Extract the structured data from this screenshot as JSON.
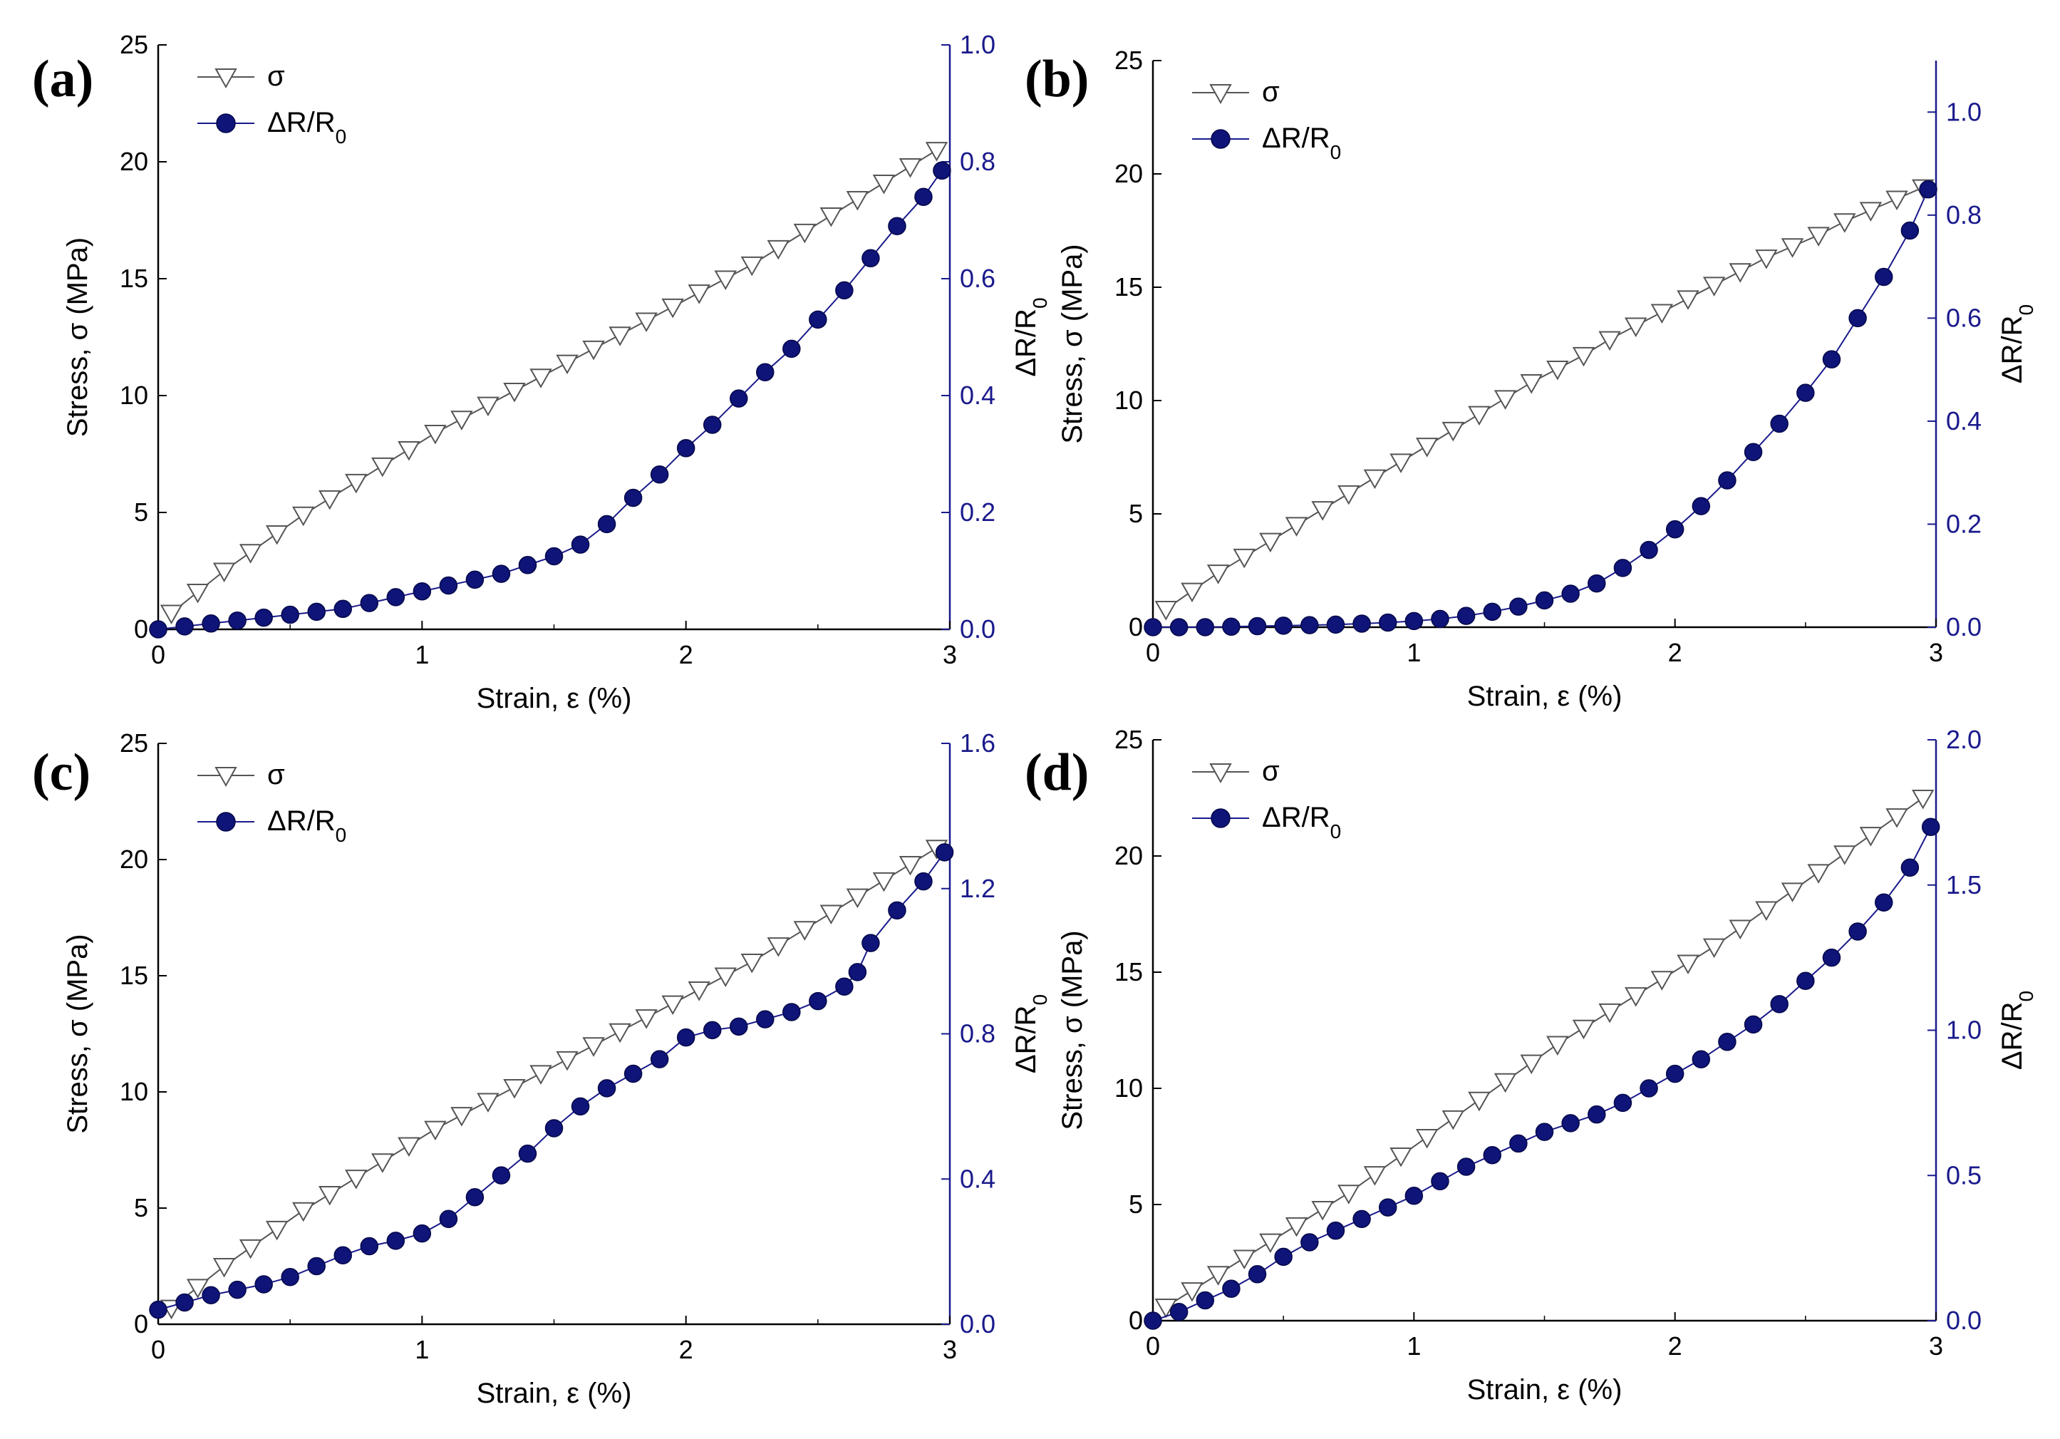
{
  "colors": {
    "stress": "#555555",
    "resistance": "#1a1a8c",
    "resistance_fill": "#0f1478",
    "axis": "#000000",
    "right_axis": "#1a1a8c"
  },
  "chart_data": [
    {
      "type": "line",
      "panel": "(a)",
      "xlabel": "Strain, ε (%)",
      "ylabel": "Stress, σ (MPa)",
      "y2label": "ΔR/R0",
      "xlim": [
        0,
        3
      ],
      "ylim": [
        0,
        25
      ],
      "y2lim": [
        0,
        1.0
      ],
      "xticks": [
        "0",
        "1",
        "2",
        "3"
      ],
      "yticks": [
        "0",
        "5",
        "10",
        "15",
        "20",
        "25"
      ],
      "y2ticks": [
        "0.0",
        "0.2",
        "0.4",
        "0.6",
        "0.8",
        "1.0"
      ],
      "legend": [
        "σ",
        "ΔR/R0"
      ],
      "legend_position": "top-left",
      "series": [
        {
          "name": "σ",
          "axis": "left",
          "x": [
            0.05,
            0.15,
            0.25,
            0.35,
            0.45,
            0.55,
            0.65,
            0.75,
            0.85,
            0.95,
            1.05,
            1.15,
            1.25,
            1.35,
            1.45,
            1.55,
            1.65,
            1.75,
            1.85,
            1.95,
            2.05,
            2.15,
            2.25,
            2.35,
            2.45,
            2.55,
            2.65,
            2.75,
            2.85,
            2.95
          ],
          "y": [
            0.7,
            1.6,
            2.5,
            3.3,
            4.1,
            4.9,
            5.6,
            6.3,
            7.0,
            7.7,
            8.4,
            9.0,
            9.6,
            10.2,
            10.8,
            11.4,
            12.0,
            12.6,
            13.2,
            13.8,
            14.4,
            15.0,
            15.6,
            16.3,
            17.0,
            17.7,
            18.4,
            19.1,
            19.8,
            20.5
          ]
        },
        {
          "name": "ΔR/R0",
          "axis": "right",
          "x": [
            0.0,
            0.1,
            0.2,
            0.3,
            0.4,
            0.5,
            0.6,
            0.7,
            0.8,
            0.9,
            1.0,
            1.1,
            1.2,
            1.3,
            1.4,
            1.5,
            1.6,
            1.7,
            1.8,
            1.9,
            2.0,
            2.1,
            2.2,
            2.3,
            2.4,
            2.5,
            2.6,
            2.7,
            2.8,
            2.9,
            2.97
          ],
          "y": [
            0.0,
            0.005,
            0.01,
            0.015,
            0.02,
            0.025,
            0.03,
            0.035,
            0.045,
            0.055,
            0.065,
            0.075,
            0.085,
            0.095,
            0.11,
            0.125,
            0.145,
            0.18,
            0.225,
            0.265,
            0.31,
            0.35,
            0.395,
            0.44,
            0.48,
            0.53,
            0.58,
            0.635,
            0.69,
            0.74,
            0.785
          ]
        }
      ]
    },
    {
      "type": "line",
      "panel": "(b)",
      "xlabel": "Strain, ε (%)",
      "ylabel": "Stress, σ (MPa)",
      "y2label": "ΔR/R0",
      "xlim": [
        0,
        3
      ],
      "ylim": [
        0,
        25
      ],
      "y2lim": [
        0,
        1.1
      ],
      "xticks": [
        "0",
        "1",
        "2",
        "3"
      ],
      "yticks": [
        "0",
        "5",
        "10",
        "15",
        "20",
        "25"
      ],
      "y2ticks": [
        "0.0",
        "0.2",
        "0.4",
        "0.6",
        "0.8",
        "1.0"
      ],
      "legend": [
        "σ",
        "ΔR/R0"
      ],
      "legend_position": "top-left",
      "series": [
        {
          "name": "σ",
          "axis": "left",
          "x": [
            0.05,
            0.15,
            0.25,
            0.35,
            0.45,
            0.55,
            0.65,
            0.75,
            0.85,
            0.95,
            1.05,
            1.15,
            1.25,
            1.35,
            1.45,
            1.55,
            1.65,
            1.75,
            1.85,
            1.95,
            2.05,
            2.15,
            2.25,
            2.35,
            2.45,
            2.55,
            2.65,
            2.75,
            2.85,
            2.95
          ],
          "y": [
            0.8,
            1.6,
            2.4,
            3.1,
            3.8,
            4.5,
            5.2,
            5.9,
            6.6,
            7.3,
            8.0,
            8.7,
            9.4,
            10.1,
            10.8,
            11.4,
            12.0,
            12.7,
            13.3,
            13.9,
            14.5,
            15.1,
            15.7,
            16.3,
            16.8,
            17.3,
            17.9,
            18.4,
            18.9,
            19.4
          ]
        },
        {
          "name": "ΔR/R0",
          "axis": "right",
          "x": [
            0.0,
            0.1,
            0.2,
            0.3,
            0.4,
            0.5,
            0.6,
            0.7,
            0.8,
            0.9,
            1.0,
            1.1,
            1.2,
            1.3,
            1.4,
            1.5,
            1.6,
            1.7,
            1.8,
            1.9,
            2.0,
            2.1,
            2.2,
            2.3,
            2.4,
            2.5,
            2.6,
            2.7,
            2.8,
            2.9,
            2.97
          ],
          "y": [
            0.0,
            0.0,
            0.0,
            0.001,
            0.002,
            0.003,
            0.004,
            0.005,
            0.007,
            0.009,
            0.012,
            0.016,
            0.022,
            0.03,
            0.04,
            0.052,
            0.065,
            0.085,
            0.115,
            0.15,
            0.19,
            0.235,
            0.285,
            0.34,
            0.395,
            0.455,
            0.52,
            0.6,
            0.68,
            0.77,
            0.85
          ]
        }
      ]
    },
    {
      "type": "line",
      "panel": "(c)",
      "xlabel": "Strain, ε (%)",
      "ylabel": "Stress, σ (MPa)",
      "y2label": "ΔR/R0",
      "xlim": [
        0,
        3
      ],
      "ylim": [
        0,
        25
      ],
      "y2lim": [
        0,
        1.6
      ],
      "xticks": [
        "0",
        "1",
        "2",
        "3"
      ],
      "yticks": [
        "0",
        "5",
        "10",
        "15",
        "20",
        "25"
      ],
      "y2ticks": [
        "0.0",
        "0.4",
        "0.8",
        "1.2",
        "1.6"
      ],
      "legend": [
        "σ",
        "ΔR/R0"
      ],
      "legend_position": "top-left",
      "series": [
        {
          "name": "σ",
          "axis": "left",
          "x": [
            0.05,
            0.15,
            0.25,
            0.35,
            0.45,
            0.55,
            0.65,
            0.75,
            0.85,
            0.95,
            1.05,
            1.15,
            1.25,
            1.35,
            1.45,
            1.55,
            1.65,
            1.75,
            1.85,
            1.95,
            2.05,
            2.15,
            2.25,
            2.35,
            2.45,
            2.55,
            2.65,
            2.75,
            2.85,
            2.95
          ],
          "y": [
            0.7,
            1.6,
            2.5,
            3.3,
            4.1,
            4.9,
            5.6,
            6.3,
            7.0,
            7.7,
            8.4,
            9.0,
            9.6,
            10.2,
            10.8,
            11.4,
            12.0,
            12.6,
            13.2,
            13.8,
            14.4,
            15.0,
            15.6,
            16.3,
            17.0,
            17.7,
            18.4,
            19.1,
            19.8,
            20.5
          ]
        },
        {
          "name": "ΔR/R0",
          "axis": "right",
          "x": [
            0.0,
            0.1,
            0.2,
            0.3,
            0.4,
            0.5,
            0.6,
            0.7,
            0.8,
            0.9,
            1.0,
            1.1,
            1.2,
            1.3,
            1.4,
            1.5,
            1.6,
            1.7,
            1.8,
            1.9,
            2.0,
            2.1,
            2.2,
            2.3,
            2.4,
            2.5,
            2.6,
            2.65,
            2.7,
            2.8,
            2.9,
            2.98
          ],
          "y": [
            0.04,
            0.06,
            0.08,
            0.095,
            0.11,
            0.13,
            0.16,
            0.19,
            0.215,
            0.23,
            0.25,
            0.29,
            0.35,
            0.41,
            0.47,
            0.54,
            0.6,
            0.65,
            0.69,
            0.73,
            0.79,
            0.81,
            0.82,
            0.84,
            0.86,
            0.89,
            0.93,
            0.97,
            1.05,
            1.14,
            1.22,
            1.3
          ]
        }
      ]
    },
    {
      "type": "line",
      "panel": "(d)",
      "xlabel": "Strain, ε (%)",
      "ylabel": "Stress, σ (MPa)",
      "y2label": "ΔR/R0",
      "xlim": [
        0,
        3
      ],
      "ylim": [
        0,
        25
      ],
      "y2lim": [
        0,
        2.0
      ],
      "xticks": [
        "0",
        "1",
        "2",
        "3"
      ],
      "yticks": [
        "0",
        "5",
        "10",
        "15",
        "20",
        "25"
      ],
      "y2ticks": [
        "0.0",
        "0.5",
        "1.0",
        "1.5",
        "2.0"
      ],
      "legend": [
        "σ",
        "ΔR/R0"
      ],
      "legend_position": "top-left",
      "series": [
        {
          "name": "σ",
          "axis": "left",
          "x": [
            0.05,
            0.15,
            0.25,
            0.35,
            0.45,
            0.55,
            0.65,
            0.75,
            0.85,
            0.95,
            1.05,
            1.15,
            1.25,
            1.35,
            1.45,
            1.55,
            1.65,
            1.75,
            1.85,
            1.95,
            2.05,
            2.15,
            2.25,
            2.35,
            2.45,
            2.55,
            2.65,
            2.75,
            2.85,
            2.95
          ],
          "y": [
            0.6,
            1.3,
            2.0,
            2.7,
            3.4,
            4.1,
            4.8,
            5.5,
            6.3,
            7.1,
            7.9,
            8.7,
            9.5,
            10.3,
            11.1,
            11.9,
            12.6,
            13.3,
            14.0,
            14.7,
            15.4,
            16.1,
            16.9,
            17.7,
            18.5,
            19.3,
            20.1,
            20.9,
            21.7,
            22.5
          ]
        },
        {
          "name": "ΔR/R0",
          "axis": "right",
          "x": [
            0.0,
            0.1,
            0.2,
            0.3,
            0.4,
            0.5,
            0.6,
            0.7,
            0.8,
            0.9,
            1.0,
            1.1,
            1.2,
            1.3,
            1.4,
            1.5,
            1.6,
            1.7,
            1.8,
            1.9,
            2.0,
            2.1,
            2.2,
            2.3,
            2.4,
            2.5,
            2.6,
            2.7,
            2.8,
            2.9,
            2.98
          ],
          "y": [
            0.0,
            0.03,
            0.07,
            0.11,
            0.16,
            0.22,
            0.27,
            0.31,
            0.35,
            0.39,
            0.43,
            0.48,
            0.53,
            0.57,
            0.61,
            0.65,
            0.68,
            0.71,
            0.75,
            0.8,
            0.85,
            0.9,
            0.96,
            1.02,
            1.09,
            1.17,
            1.25,
            1.34,
            1.44,
            1.56,
            1.7
          ]
        }
      ]
    }
  ]
}
